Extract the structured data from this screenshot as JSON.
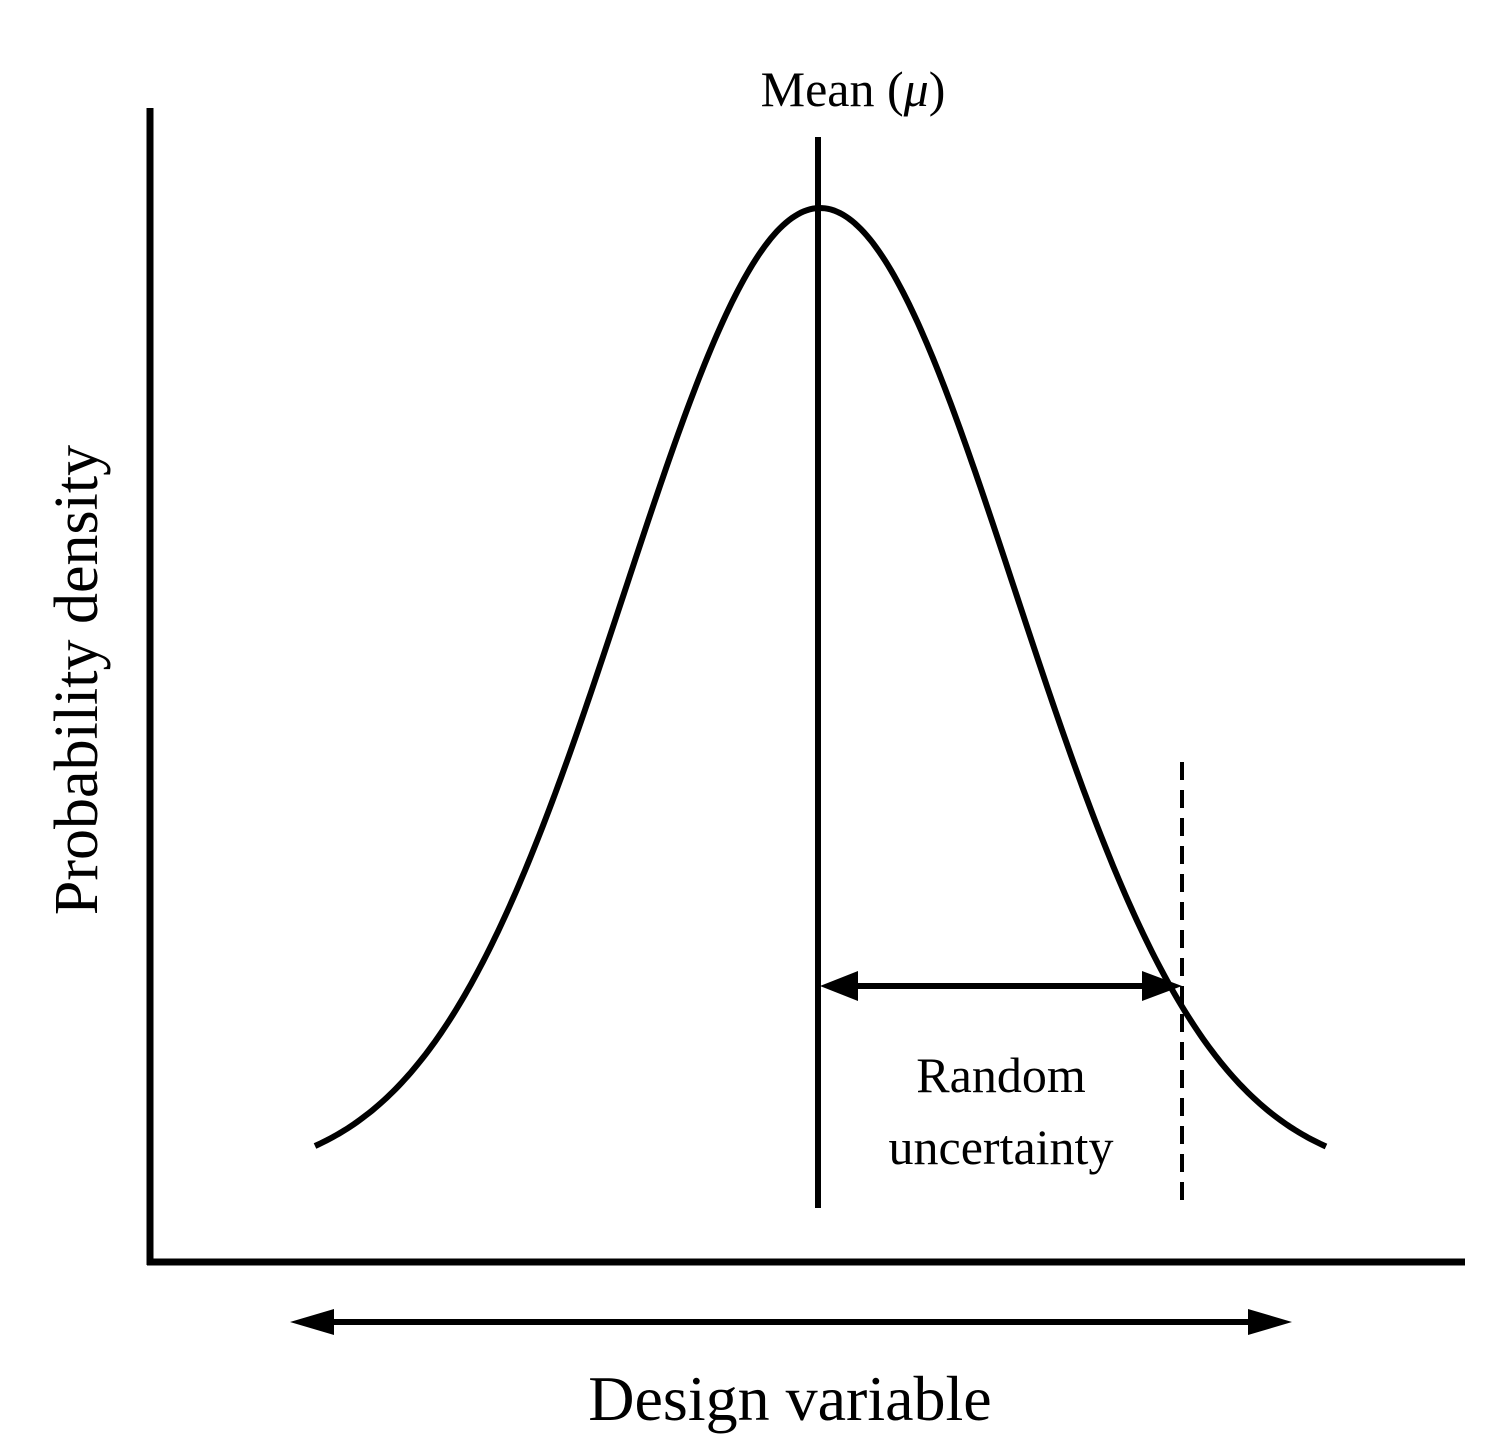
{
  "diagram": {
    "mean_label": {
      "prefix": "Mean (",
      "symbol": "μ",
      "suffix": ")"
    },
    "y_axis_label": "Probability density",
    "x_axis_label": "Design variable",
    "annotation": {
      "line1": "Random",
      "line2": "uncertainty"
    },
    "colors": {
      "stroke": "#000000",
      "background": "#ffffff"
    }
  }
}
